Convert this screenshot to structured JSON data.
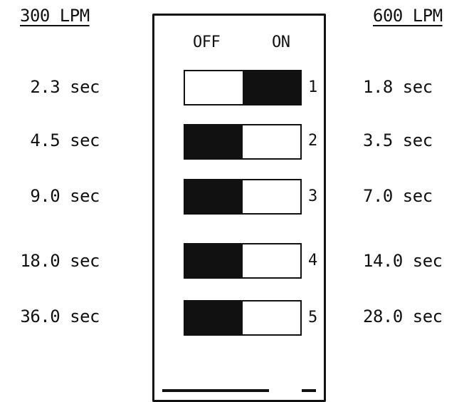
{
  "headers": {
    "left": "300 LPM",
    "right": "600 LPM"
  },
  "switch_columns": {
    "off": "OFF",
    "on": "ON"
  },
  "rows": [
    {
      "number": "1",
      "left_time": "2.3 sec",
      "right_time": "1.8 sec",
      "position": "ON"
    },
    {
      "number": "2",
      "left_time": "4.5 sec",
      "right_time": "3.5 sec",
      "position": "OFF"
    },
    {
      "number": "3",
      "left_time": "9.0 sec",
      "right_time": "7.0 sec",
      "position": "OFF"
    },
    {
      "number": "4",
      "left_time": "18.0 sec",
      "right_time": "14.0 sec",
      "position": "OFF"
    },
    {
      "number": "5",
      "left_time": "36.0 sec",
      "right_time": "28.0 sec",
      "position": "OFF"
    }
  ]
}
